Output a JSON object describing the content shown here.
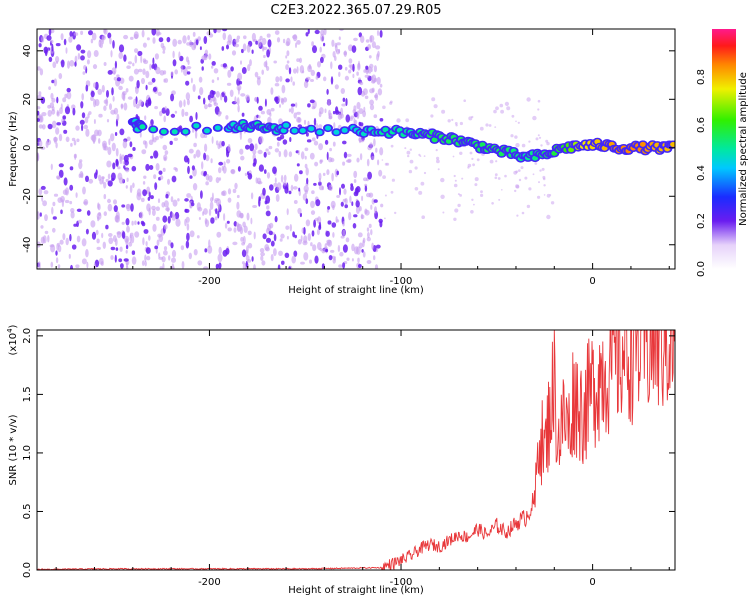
{
  "title": "C2E3.2022.365.07.29.R05",
  "colors": {
    "trace": "#e8373a",
    "scatter_light": "#c79cf0",
    "scatter_dark": "#6a1df0"
  },
  "chart_data": [
    {
      "type": "heatmap",
      "name": "spectrogram",
      "xlabel": "Height of straight line (km)",
      "ylabel": "Frequency (Hz)",
      "xlim": [
        -290,
        43
      ],
      "ylim": [
        -50,
        49
      ],
      "x_ticks": [
        -200,
        -100,
        0
      ],
      "x_tick_labels": [
        "-200",
        "-100",
        "0"
      ],
      "y_ticks": [
        -40,
        -20,
        0,
        20,
        40
      ],
      "y_tick_labels": [
        "-40",
        "-20",
        "0",
        "20",
        "40"
      ],
      "noise_region": {
        "x_from": -290,
        "x_to": -110
      },
      "ridge": [
        {
          "x": -240,
          "y": 10,
          "amp": 0.45
        },
        {
          "x": -235,
          "y": 8,
          "amp": 0.5
        },
        {
          "x": -190,
          "y": 8,
          "amp": 0.45
        },
        {
          "x": -180,
          "y": 9,
          "amp": 0.5
        },
        {
          "x": -170,
          "y": 8,
          "amp": 0.5
        },
        {
          "x": -160,
          "y": 8,
          "amp": 0.45
        },
        {
          "x": -125,
          "y": 7,
          "amp": 0.45
        },
        {
          "x": -110,
          "y": 7,
          "amp": 0.5
        },
        {
          "x": -95,
          "y": 6,
          "amp": 0.5
        },
        {
          "x": -85,
          "y": 5,
          "amp": 0.55
        },
        {
          "x": -75,
          "y": 4,
          "amp": 0.55
        },
        {
          "x": -65,
          "y": 2,
          "amp": 0.55
        },
        {
          "x": -55,
          "y": 0,
          "amp": 0.55
        },
        {
          "x": -45,
          "y": -2,
          "amp": 0.55
        },
        {
          "x": -35,
          "y": -4,
          "amp": 0.5
        },
        {
          "x": -25,
          "y": -3,
          "amp": 0.55
        },
        {
          "x": -15,
          "y": 0,
          "amp": 0.6
        },
        {
          "x": -5,
          "y": 1,
          "amp": 0.75
        },
        {
          "x": 5,
          "y": 1,
          "amp": 0.8
        },
        {
          "x": 15,
          "y": 0,
          "amp": 0.85
        },
        {
          "x": 25,
          "y": 0,
          "amp": 0.85
        },
        {
          "x": 35,
          "y": 0,
          "amp": 0.8
        },
        {
          "x": 43,
          "y": 0,
          "amp": 0.8
        }
      ],
      "colorbar": {
        "label": "Normalized spectral amplitude",
        "range": [
          0,
          1
        ],
        "ticks": [
          0.0,
          0.2,
          0.4,
          0.6,
          0.8
        ],
        "tick_labels": [
          "0.0",
          "0.2",
          "0.4",
          "0.6",
          "0.8"
        ]
      }
    },
    {
      "type": "line",
      "name": "snr",
      "xlabel": "Height of straight line (km)",
      "ylabel": "SNR (10 * v/v)",
      "y_scale_note": "(x10",
      "y_scale_exp": "4",
      "y_scale_close": ")",
      "xlim": [
        -290,
        43
      ],
      "ylim": [
        0,
        2.05
      ],
      "x_ticks": [
        -200,
        -100,
        0
      ],
      "x_tick_labels": [
        "-200",
        "-100",
        "0"
      ],
      "y_ticks": [
        0.0,
        0.5,
        1.0,
        1.5,
        2.0
      ],
      "y_tick_labels": [
        "0.0",
        "0.5",
        "1.0",
        "1.5",
        "2.0"
      ],
      "series": [
        {
          "name": "SNR",
          "x": [
            -290,
            -250,
            -200,
            -150,
            -110,
            -105,
            -100,
            -95,
            -90,
            -85,
            -80,
            -75,
            -70,
            -65,
            -60,
            -55,
            -50,
            -45,
            -40,
            -35,
            -30,
            -28,
            -25,
            -22,
            -20,
            -18,
            -15,
            -12,
            -10,
            -5,
            0,
            5,
            10,
            15,
            20,
            25,
            30,
            35,
            40,
            43
          ],
          "values": [
            0.005,
            0.01,
            0.01,
            0.01,
            0.02,
            0.05,
            0.08,
            0.12,
            0.18,
            0.22,
            0.2,
            0.25,
            0.3,
            0.28,
            0.35,
            0.3,
            0.38,
            0.32,
            0.4,
            0.45,
            0.6,
            1.2,
            1.0,
            1.4,
            1.6,
            1.1,
            1.3,
            1.2,
            1.5,
            1.35,
            1.55,
            1.7,
            1.75,
            1.85,
            1.9,
            1.92,
            1.95,
            1.98,
            2.0,
            1.95
          ]
        }
      ]
    }
  ]
}
